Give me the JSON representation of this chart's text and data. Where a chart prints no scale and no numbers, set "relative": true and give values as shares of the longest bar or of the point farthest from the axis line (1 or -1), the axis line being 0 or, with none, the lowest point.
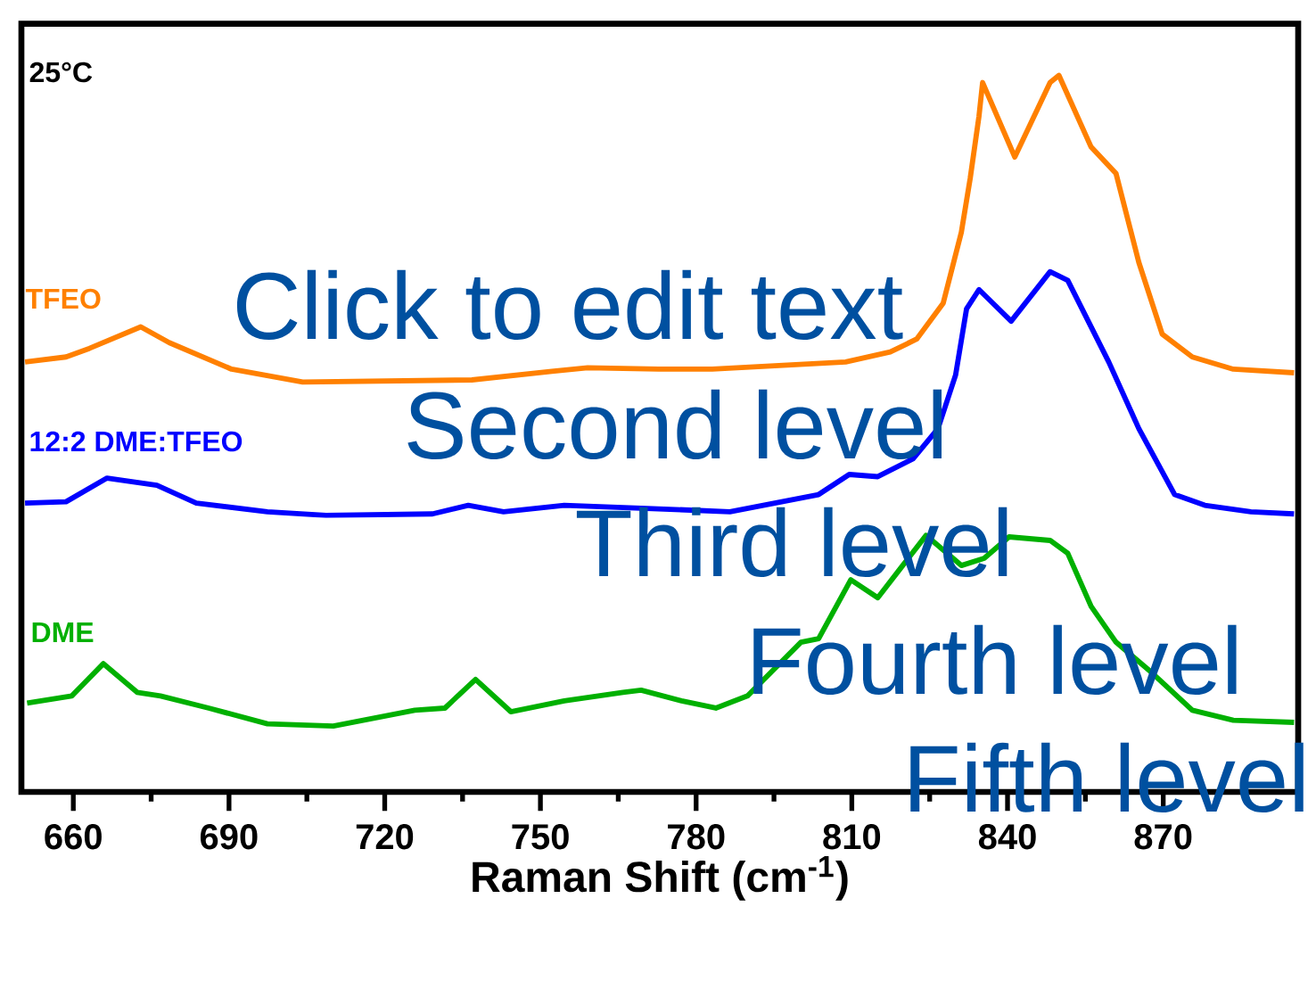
{
  "chart_data": {
    "type": "line",
    "relative": true,
    "xlabel": "Raman Shift (cm$^{-1}$)",
    "xlim": [
      650,
      896
    ],
    "xticks": [
      660,
      690,
      720,
      750,
      780,
      810,
      840,
      870
    ],
    "marker": "none",
    "line_style": "solid",
    "annotations": [
      "25°C",
      "Click to edit text",
      "Second level",
      "Third level",
      "Fourth level",
      "Fifth level"
    ],
    "series": [
      {
        "name": "TFEO",
        "color": "#ff8000",
        "x": [
          650.7,
          658.6,
          663.1,
          673.0,
          678.5,
          690.5,
          704.2,
          736.8,
          752.2,
          759.1,
          772.8,
          783.1,
          808.8,
          817.4,
          822.5,
          827.6,
          831.1,
          832.8,
          834.5,
          835.2,
          841.4,
          848.2,
          849.9,
          856.1,
          860.9,
          865.3,
          869.8,
          875.6,
          883.5,
          895.2
        ],
        "values": [
          0.6,
          0.607,
          0.619,
          0.649,
          0.627,
          0.59,
          0.572,
          0.575,
          0.587,
          0.592,
          0.59,
          0.59,
          0.6,
          0.614,
          0.632,
          0.682,
          0.781,
          0.856,
          0.943,
          0.99,
          0.886,
          0.99,
          1.0,
          0.9,
          0.863,
          0.739,
          0.639,
          0.607,
          0.59,
          0.585
        ]
      },
      {
        "name": "12:2 DME:TFEO",
        "color": "#0000ff",
        "x": [
          650.7,
          658.6,
          666.5,
          676.1,
          683.7,
          697.4,
          708.7,
          729.2,
          736.1,
          742.9,
          754.6,
          769.4,
          786.5,
          803.6,
          809.5,
          815.0,
          821.8,
          826.6,
          830.0,
          832.1,
          834.5,
          840.7,
          848.2,
          851.6,
          859.5,
          865.3,
          872.2,
          878.0,
          886.9,
          895.2
        ],
        "values": [
          0.403,
          0.405,
          0.438,
          0.428,
          0.403,
          0.391,
          0.386,
          0.388,
          0.4,
          0.391,
          0.4,
          0.396,
          0.391,
          0.415,
          0.443,
          0.44,
          0.465,
          0.507,
          0.582,
          0.674,
          0.701,
          0.657,
          0.726,
          0.714,
          0.6,
          0.507,
          0.415,
          0.4,
          0.391,
          0.388
        ]
      },
      {
        "name": "DME",
        "color": "#00b000",
        "x": [
          651.1,
          659.7,
          665.8,
          672.3,
          676.8,
          686.1,
          697.4,
          710.1,
          725.8,
          731.6,
          737.5,
          744.3,
          754.6,
          765.9,
          769.4,
          777.2,
          783.8,
          789.9,
          800.2,
          803.6,
          809.8,
          815.0,
          819.8,
          824.3,
          831.1,
          835.5,
          840.3,
          848.2,
          851.6,
          856.1,
          860.9,
          867.7,
          875.6,
          883.5,
          895.2
        ],
        "values": [
          0.124,
          0.134,
          0.179,
          0.139,
          0.134,
          0.117,
          0.095,
          0.092,
          0.114,
          0.117,
          0.157,
          0.112,
          0.127,
          0.139,
          0.142,
          0.127,
          0.117,
          0.134,
          0.209,
          0.214,
          0.296,
          0.271,
          0.316,
          0.358,
          0.316,
          0.326,
          0.356,
          0.351,
          0.333,
          0.259,
          0.209,
          0.167,
          0.114,
          0.1,
          0.097
        ]
      }
    ]
  }
}
